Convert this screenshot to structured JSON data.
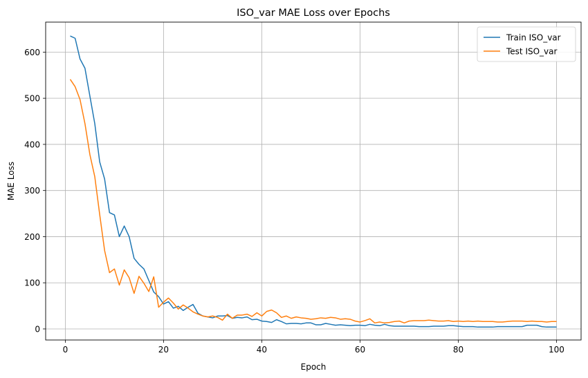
{
  "chart_data": {
    "type": "line",
    "title": "ISO_var MAE Loss over Epochs",
    "xlabel": "Epoch",
    "ylabel": "MAE Loss",
    "xlim": [
      -4,
      105
    ],
    "ylim": [
      -24,
      665
    ],
    "xticks": [
      0,
      20,
      40,
      60,
      80,
      100
    ],
    "yticks": [
      0,
      100,
      200,
      300,
      400,
      500,
      600
    ],
    "grid": true,
    "legend": "top-right",
    "x": [
      1,
      2,
      3,
      4,
      5,
      6,
      7,
      8,
      9,
      10,
      11,
      12,
      13,
      14,
      15,
      16,
      17,
      18,
      19,
      20,
      21,
      22,
      23,
      24,
      25,
      26,
      27,
      28,
      29,
      30,
      31,
      32,
      33,
      34,
      35,
      36,
      37,
      38,
      39,
      40,
      41,
      42,
      43,
      44,
      45,
      46,
      47,
      48,
      49,
      50,
      51,
      52,
      53,
      54,
      55,
      56,
      57,
      58,
      59,
      60,
      61,
      62,
      63,
      64,
      65,
      66,
      67,
      68,
      69,
      70,
      71,
      72,
      73,
      74,
      75,
      76,
      77,
      78,
      79,
      80,
      81,
      82,
      83,
      84,
      85,
      86,
      87,
      88,
      89,
      90,
      91,
      92,
      93,
      94,
      95,
      96,
      97,
      98,
      99,
      100
    ],
    "series": [
      {
        "name": "Train ISO_var",
        "color": "#1f77b4",
        "values": [
          635,
          630,
          585,
          565,
          505,
          445,
          362,
          325,
          252,
          247,
          200,
          223,
          200,
          153,
          140,
          130,
          105,
          80,
          70,
          54,
          59,
          45,
          49,
          40,
          47,
          53,
          34,
          28,
          26,
          24,
          28,
          28,
          29,
          23,
          25,
          24,
          26,
          20,
          21,
          17,
          16,
          14,
          20,
          16,
          11,
          12,
          12,
          11,
          13,
          13,
          9,
          9,
          12,
          10,
          8,
          9,
          8,
          7,
          8,
          8,
          7,
          10,
          8,
          7,
          10,
          7,
          6,
          6,
          6,
          6,
          6,
          5,
          5,
          5,
          6,
          6,
          6,
          7,
          7,
          6,
          5,
          5,
          5,
          4,
          4,
          4,
          4,
          5,
          5,
          5,
          5,
          5,
          5,
          8,
          8,
          8,
          5,
          4,
          4,
          4
        ]
      },
      {
        "name": "Test ISO_var",
        "color": "#ff7f0e",
        "values": [
          541,
          525,
          497,
          445,
          378,
          330,
          248,
          170,
          122,
          130,
          95,
          128,
          111,
          77,
          114,
          99,
          81,
          113,
          47,
          58,
          67,
          56,
          43,
          52,
          45,
          37,
          32,
          28,
          26,
          28,
          25,
          19,
          32,
          23,
          30,
          30,
          32,
          27,
          35,
          28,
          38,
          41,
          35,
          25,
          28,
          23,
          26,
          24,
          23,
          21,
          22,
          24,
          23,
          25,
          24,
          21,
          22,
          21,
          17,
          15,
          18,
          22,
          13,
          15,
          13,
          14,
          16,
          17,
          13,
          17,
          18,
          18,
          18,
          19,
          18,
          17,
          17,
          18,
          16,
          17,
          16,
          17,
          16,
          17,
          16,
          16,
          16,
          15,
          15,
          16,
          17,
          17,
          17,
          16,
          17,
          16,
          16,
          15,
          16,
          16
        ]
      }
    ]
  }
}
